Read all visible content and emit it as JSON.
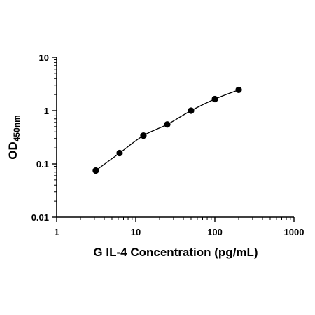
{
  "chart_data": {
    "type": "scatter",
    "xscale": "log",
    "yscale": "log",
    "xlim": [
      1,
      1000
    ],
    "ylim": [
      0.01,
      10
    ],
    "x_ticks": [
      "1",
      "10",
      "100",
      "1000"
    ],
    "y_ticks": [
      "0.01",
      "0.1",
      "1",
      "10"
    ],
    "xlabel": "G IL-4 Concentration (pg/mL)",
    "ylabel_main": "OD",
    "ylabel_sub": "450nm",
    "grid": false,
    "legend": "none",
    "fit": "smooth curve",
    "series": [
      {
        "x": [
          3.125,
          6.25,
          12.5,
          25,
          50,
          100,
          200
        ],
        "y": [
          0.075,
          0.16,
          0.34,
          0.55,
          1.0,
          1.65,
          2.45
        ]
      }
    ],
    "colors": {
      "points": "#000000",
      "line": "#000000",
      "axes": "#000000"
    }
  }
}
